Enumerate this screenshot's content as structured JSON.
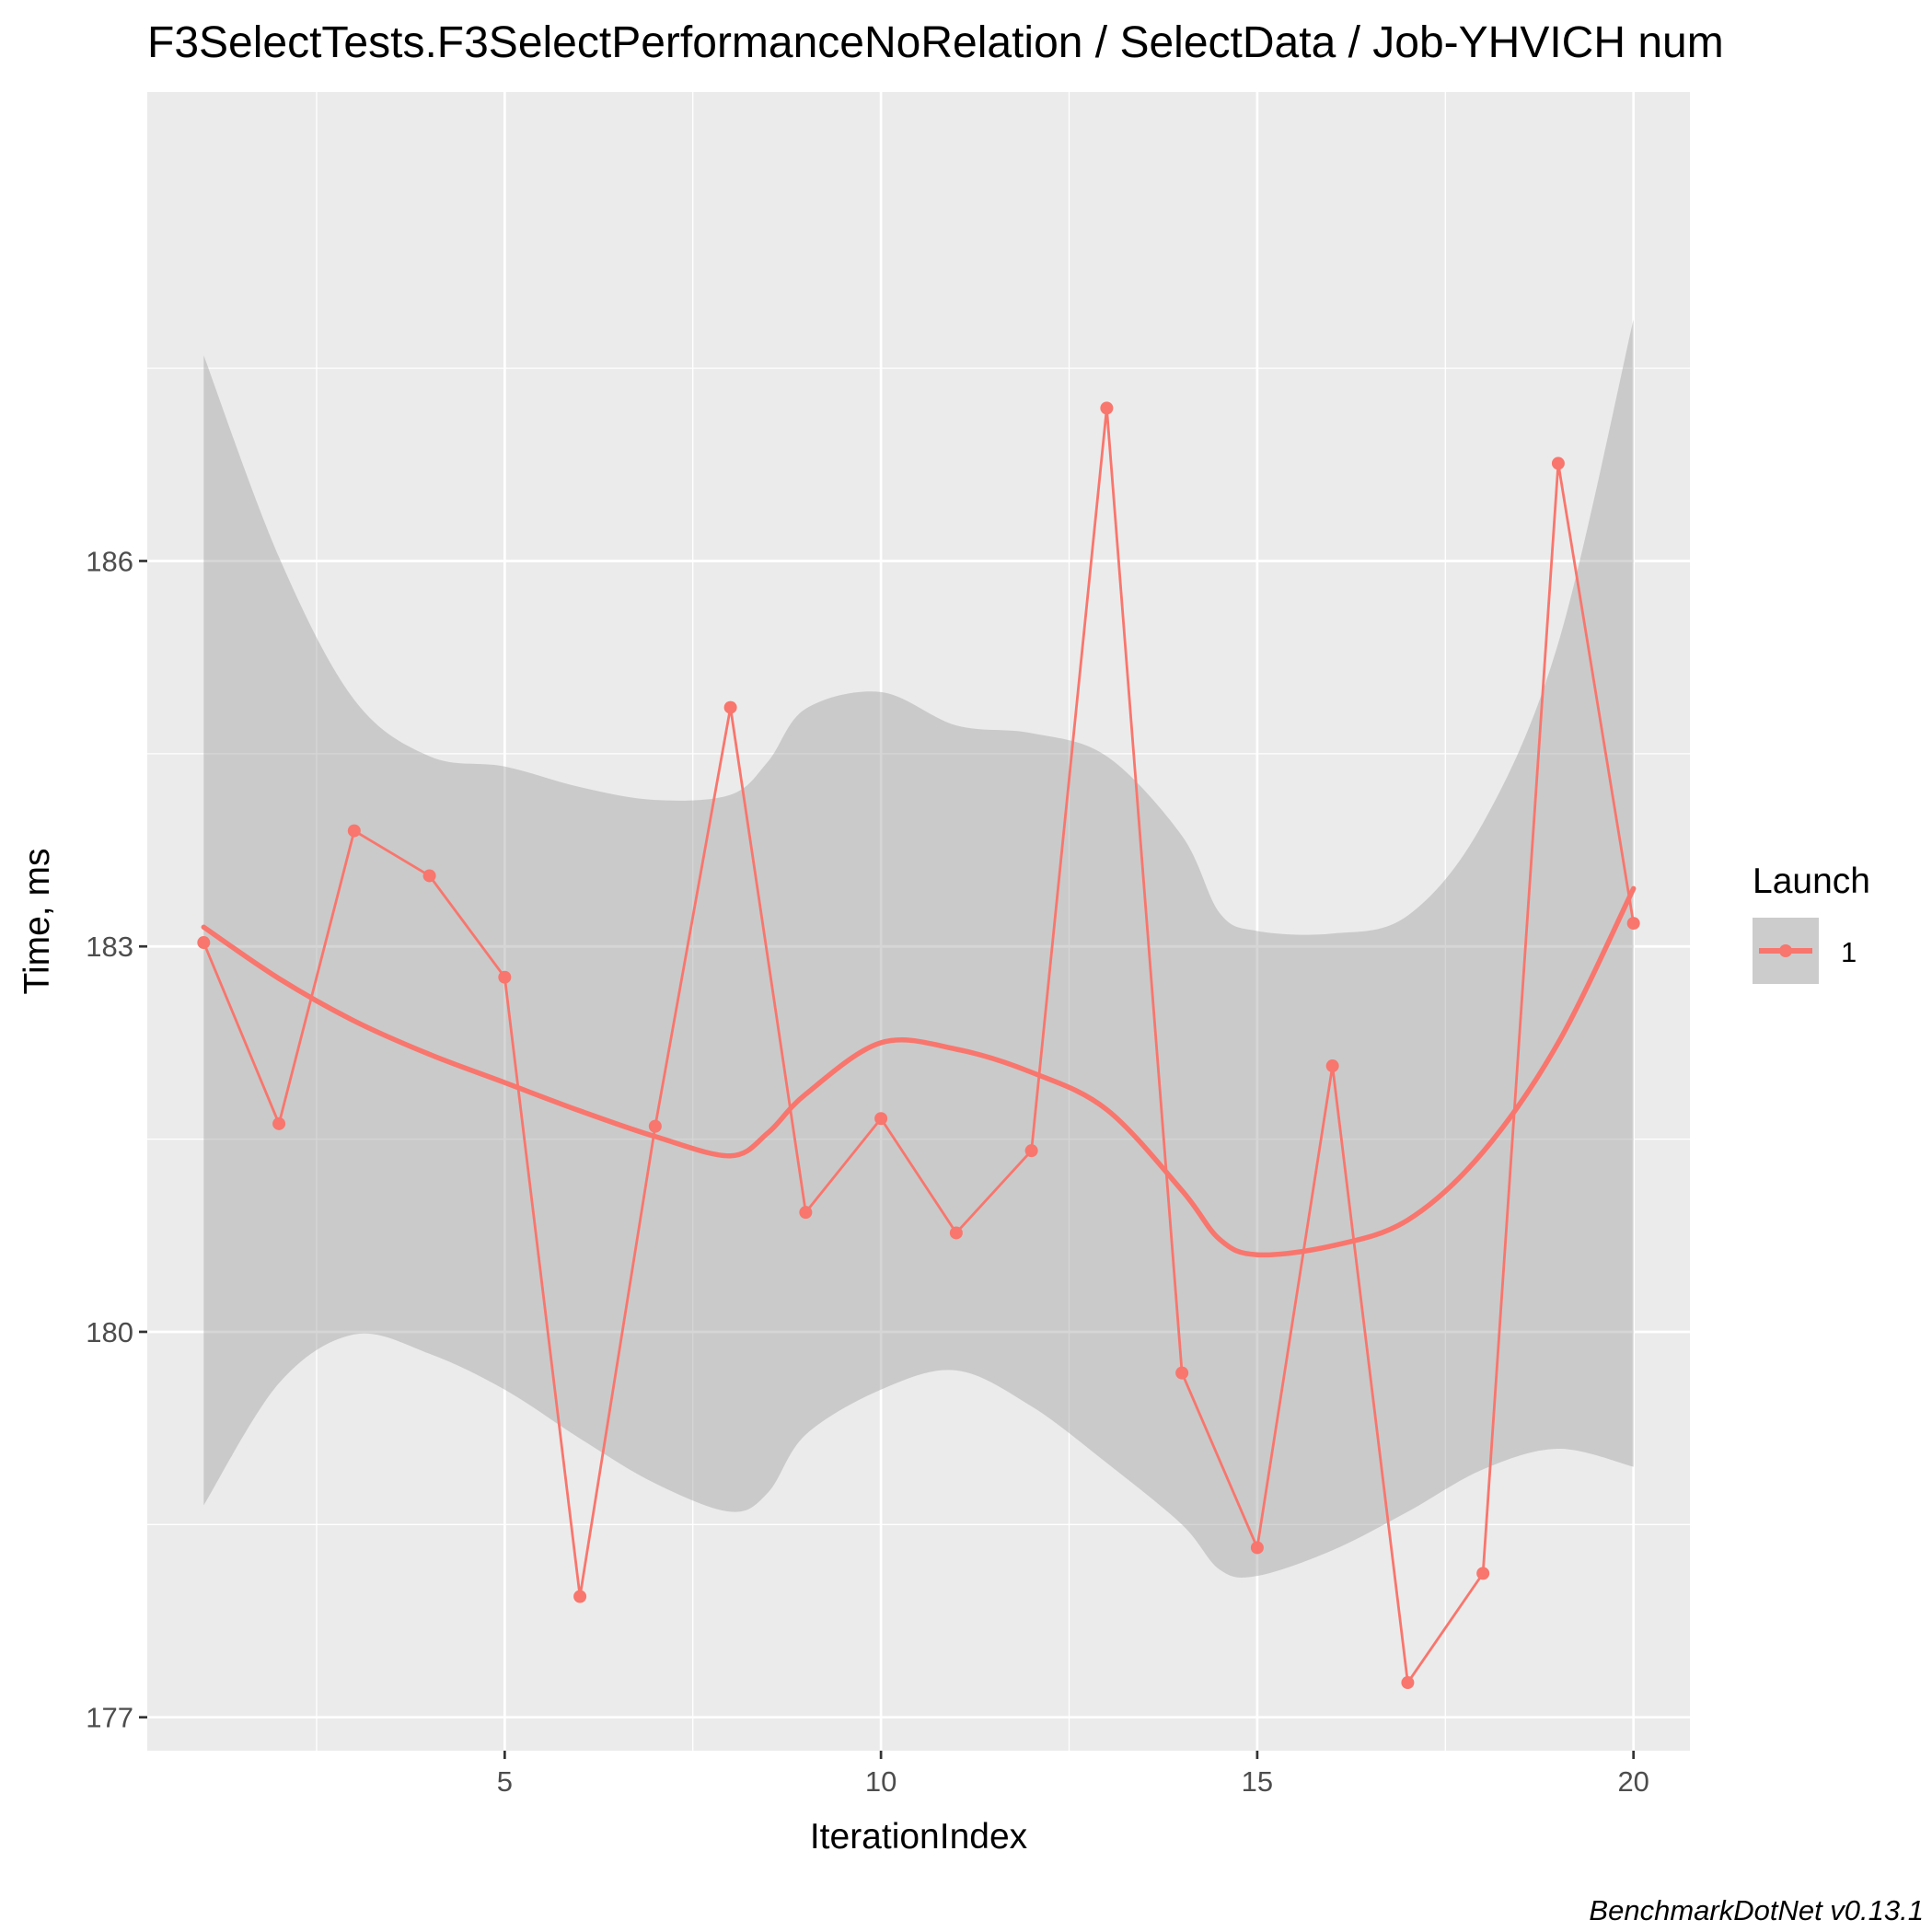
{
  "chart_data": {
    "type": "line",
    "title": "F3SelectTests.F3SelectPerformanceNoRelation / SelectData / Job-YHVICH num",
    "xlabel": "IterationIndex",
    "ylabel": "Time, ms",
    "caption": "BenchmarkDotNet v0.13.1",
    "xlim": [
      0.25,
      20.75
    ],
    "ylim": [
      176.74,
      189.65
    ],
    "x_ticks": [
      5,
      10,
      15,
      20
    ],
    "x_tick_labels": [
      "5",
      "10",
      "15",
      "20"
    ],
    "y_ticks": [
      177,
      180,
      183,
      186
    ],
    "y_tick_labels": [
      "177",
      "180",
      "183",
      "186"
    ],
    "grid": true,
    "legend": {
      "title": "Launch",
      "position": "right",
      "entries": [
        {
          "label": "1",
          "color": "#F8766D"
        }
      ]
    },
    "series": [
      {
        "name": "1",
        "color": "#F8766D",
        "x": [
          1,
          2,
          3,
          4,
          5,
          6,
          7,
          8,
          9,
          10,
          11,
          12,
          13,
          14,
          15,
          16,
          17,
          18,
          19,
          20
        ],
        "values": [
          183.03,
          181.62,
          183.9,
          183.55,
          182.76,
          177.94,
          181.6,
          184.86,
          180.93,
          181.66,
          180.77,
          181.41,
          187.19,
          179.68,
          178.32,
          182.07,
          177.27,
          178.12,
          186.76,
          183.18
        ]
      }
    ],
    "smooth": {
      "color": "#F8766D",
      "band_color": "#999999",
      "x": [
        1,
        2,
        3,
        4,
        5,
        6,
        7,
        8,
        8.5,
        9,
        10,
        11,
        12,
        13,
        14,
        14.5,
        15,
        16,
        17,
        18,
        19,
        20
      ],
      "fit": [
        183.15,
        182.75,
        182.42,
        182.16,
        181.94,
        181.72,
        181.52,
        181.37,
        181.55,
        181.85,
        182.25,
        182.2,
        182.02,
        181.73,
        181.1,
        180.72,
        180.6,
        180.67,
        180.87,
        181.4,
        182.25,
        183.45
      ],
      "lower": [
        178.65,
        179.6,
        179.98,
        179.83,
        179.55,
        179.17,
        178.82,
        178.6,
        178.75,
        179.2,
        179.55,
        179.7,
        179.42,
        178.98,
        178.5,
        178.15,
        178.1,
        178.3,
        178.6,
        178.93,
        179.09,
        178.95
      ],
      "upper": [
        187.6,
        186.03,
        184.92,
        184.48,
        184.4,
        184.24,
        184.14,
        184.18,
        184.44,
        184.85,
        184.98,
        184.72,
        184.66,
        184.48,
        183.86,
        183.26,
        183.12,
        183.1,
        183.24,
        183.96,
        185.36,
        187.88
      ]
    }
  }
}
